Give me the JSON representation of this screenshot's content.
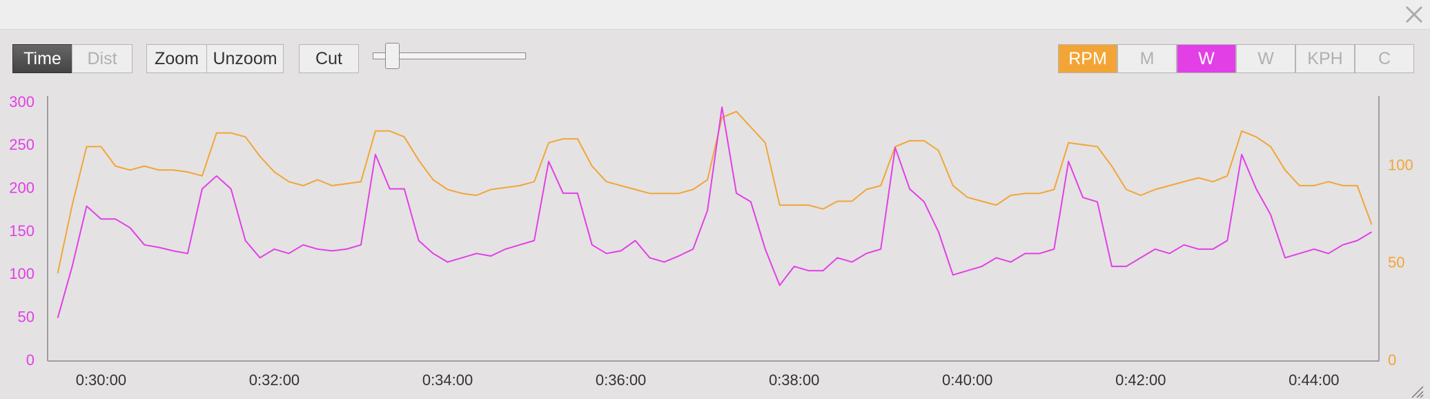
{
  "toolbar": {
    "left": [
      "Time",
      "Dist",
      "Zoom",
      "Unzoom",
      "Cut"
    ],
    "right": [
      "M",
      "W",
      "KPH",
      "C"
    ]
  },
  "chart_data": {
    "type": "line",
    "x": [
      1770,
      1780,
      1790,
      1800,
      1810,
      1820,
      1830,
      1840,
      1850,
      1860,
      1870,
      1880,
      1890,
      1900,
      1910,
      1920,
      1930,
      1940,
      1950,
      1960,
      1970,
      1980,
      1990,
      2000,
      2010,
      2020,
      2030,
      2040,
      2050,
      2060,
      2070,
      2080,
      2090,
      2100,
      2110,
      2120,
      2130,
      2140,
      2150,
      2160,
      2170,
      2180,
      2190,
      2200,
      2210,
      2220,
      2230,
      2240,
      2250,
      2260,
      2270,
      2280,
      2290,
      2300,
      2310,
      2320,
      2330,
      2340,
      2350,
      2360,
      2370,
      2380,
      2390,
      2400,
      2410,
      2420,
      2430,
      2440,
      2450,
      2460,
      2470,
      2480,
      2490,
      2500,
      2510,
      2520,
      2530,
      2540,
      2550,
      2560,
      2570,
      2580,
      2590,
      2600,
      2610,
      2620,
      2630,
      2640,
      2650,
      2660,
      2670,
      2680
    ],
    "xlim": [
      1763,
      2685
    ],
    "xticks": [
      {
        "value": 1800,
        "label": "0:30:00"
      },
      {
        "value": 1920,
        "label": "0:32:00"
      },
      {
        "value": 2040,
        "label": "0:34:00"
      },
      {
        "value": 2160,
        "label": "0:36:00"
      },
      {
        "value": 2280,
        "label": "0:38:00"
      },
      {
        "value": 2400,
        "label": "0:40:00"
      },
      {
        "value": 2520,
        "label": "0:42:00"
      },
      {
        "value": 2640,
        "label": "0:44:00"
      }
    ],
    "ylim": [
      0,
      308
    ],
    "yticks": [
      0,
      50,
      100,
      150,
      200,
      250,
      300
    ],
    "y2lim": [
      0,
      136
    ],
    "y2ticks": [
      0,
      50,
      100
    ],
    "series": [
      {
        "name": "W",
        "color": "#e23fe6",
        "values": [
          50,
          110,
          180,
          165,
          165,
          155,
          135,
          132,
          128,
          125,
          200,
          215,
          200,
          140,
          120,
          130,
          125,
          135,
          130,
          128,
          130,
          135,
          240,
          200,
          200,
          140,
          125,
          115,
          120,
          125,
          122,
          130,
          135,
          140,
          232,
          195,
          195,
          135,
          125,
          128,
          140,
          120,
          115,
          122,
          130,
          175,
          295,
          195,
          185,
          130,
          88,
          110,
          105,
          105,
          120,
          115,
          125,
          130,
          248,
          200,
          185,
          150,
          100,
          105,
          110,
          120,
          115,
          125,
          125,
          130,
          232,
          190,
          185,
          110,
          110,
          120,
          130,
          125,
          135,
          130,
          130,
          140,
          240,
          200,
          170,
          120,
          125,
          130,
          125,
          135,
          140,
          150
        ]
      },
      {
        "name": "RPM",
        "color": "#f2a536",
        "axis": "y2",
        "values": [
          45,
          80,
          110,
          110,
          100,
          98,
          100,
          98,
          98,
          97,
          95,
          117,
          117,
          115,
          105,
          97,
          92,
          90,
          93,
          90,
          91,
          92,
          118,
          118,
          115,
          103,
          93,
          88,
          86,
          85,
          88,
          89,
          90,
          92,
          112,
          114,
          114,
          100,
          92,
          90,
          88,
          86,
          86,
          86,
          88,
          93,
          125,
          128,
          120,
          112,
          80,
          80,
          80,
          78,
          82,
          82,
          88,
          90,
          110,
          113,
          113,
          108,
          90,
          84,
          82,
          80,
          85,
          86,
          86,
          88,
          112,
          111,
          110,
          100,
          88,
          85,
          88,
          90,
          92,
          94,
          92,
          95,
          118,
          115,
          110,
          98,
          90,
          90,
          92,
          90,
          90,
          70
        ]
      }
    ]
  }
}
